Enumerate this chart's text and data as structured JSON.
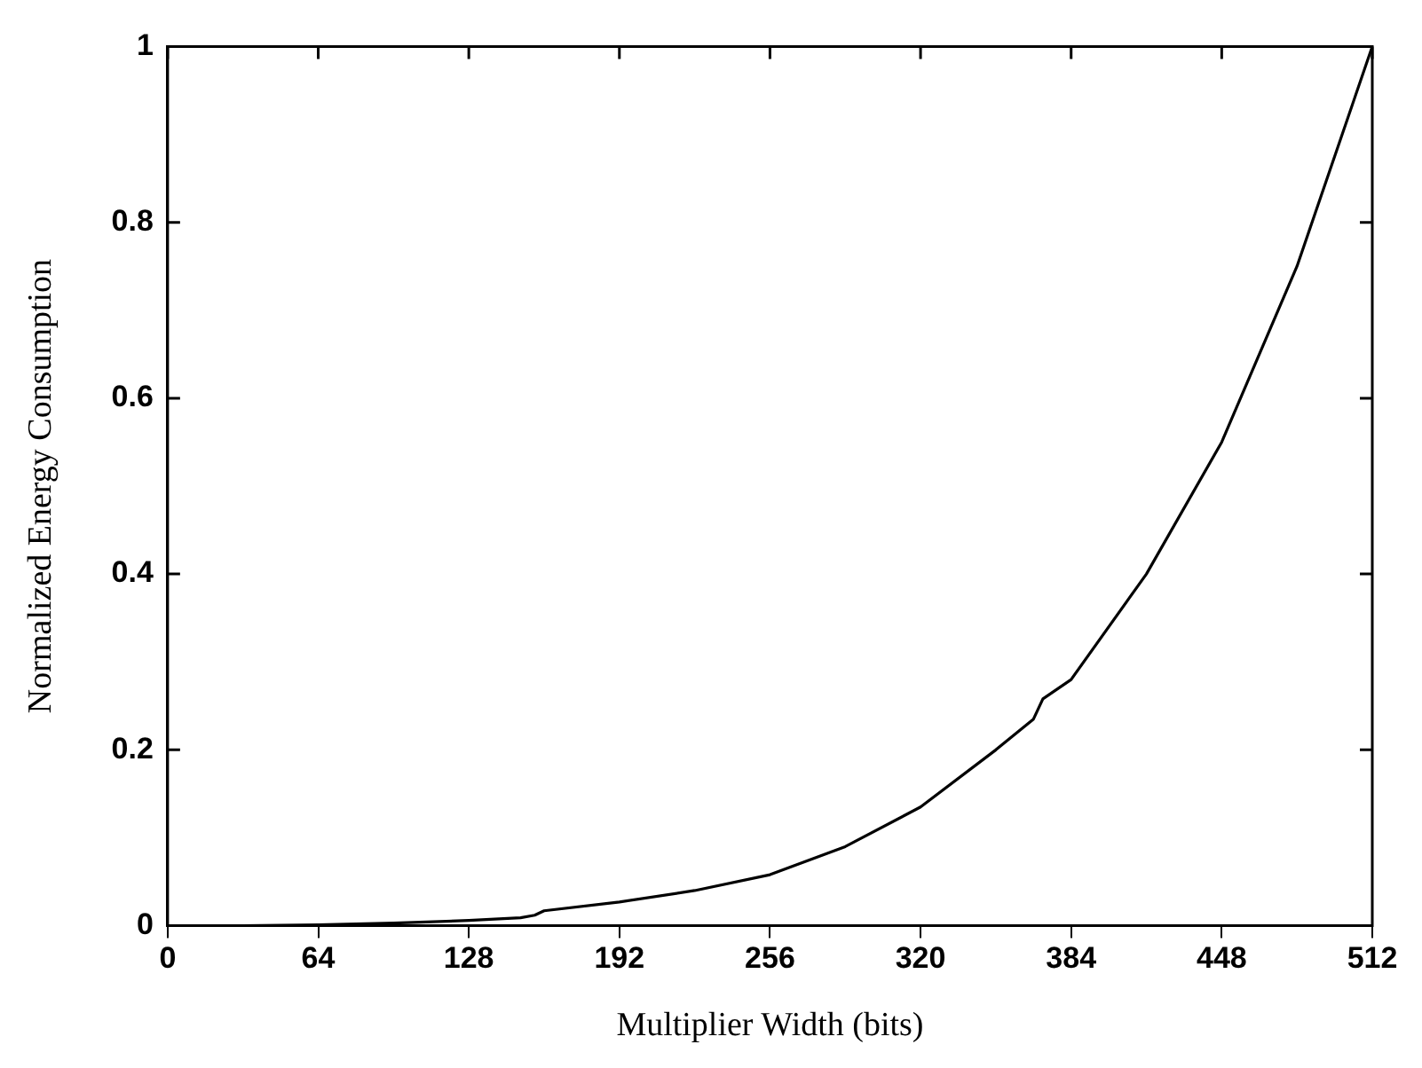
{
  "chart_data": {
    "type": "line",
    "xlabel": "Multiplier Width (bits)",
    "ylabel": "Normalized Energy Consumption",
    "x": [
      0,
      32,
      64,
      96,
      128,
      150,
      156,
      160,
      192,
      224,
      256,
      288,
      320,
      352,
      368,
      372,
      384,
      416,
      448,
      480,
      512
    ],
    "series": [
      {
        "color": "#000000",
        "values": [
          0,
          0,
          0.001,
          0.003,
          0.006,
          0.009,
          0.012,
          0.017,
          0.027,
          0.04,
          0.058,
          0.09,
          0.135,
          0.2,
          0.235,
          0.258,
          0.28,
          0.4,
          0.55,
          0.75,
          1.0
        ]
      }
    ],
    "xlim": [
      0,
      512
    ],
    "xticks": [
      0,
      64,
      128,
      192,
      256,
      320,
      384,
      448,
      512
    ],
    "ylim": [
      0,
      1
    ],
    "yticks": [
      0,
      0.2,
      0.4,
      0.6,
      0.8,
      1
    ],
    "grid": false,
    "legend": false,
    "marker": "none",
    "line_style": "solid"
  }
}
